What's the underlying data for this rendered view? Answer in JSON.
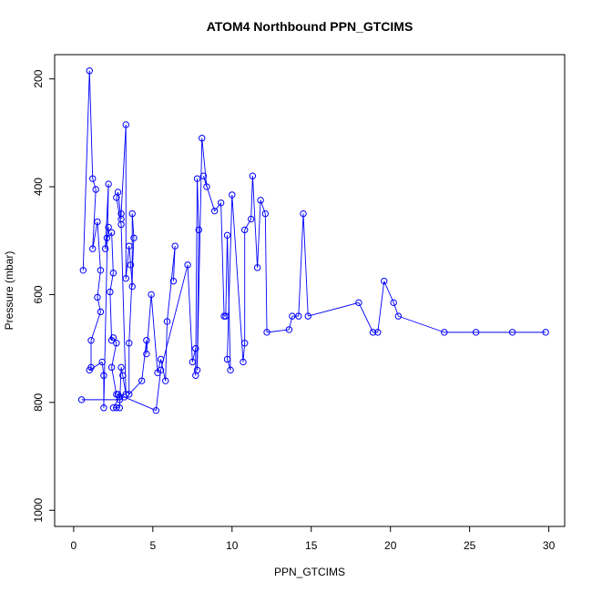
{
  "chart_data": {
    "type": "line",
    "title": "ATOM4 Northbound PPN_GTCIMS",
    "xlabel": "PPN_GTCIMS",
    "ylabel": "Pressure (mbar)",
    "xlim": [
      -1.2,
      31.0
    ],
    "ylim": [
      1030,
      155
    ],
    "y_reversed": true,
    "x_ticks": [
      0,
      5,
      10,
      15,
      20,
      25,
      30
    ],
    "y_ticks": [
      200,
      400,
      600,
      800,
      1000
    ],
    "series_color": "#0000ff",
    "grid": false,
    "legend": "none",
    "series": [
      {
        "values": [
          [
            0.6,
            555
          ],
          [
            1.0,
            185
          ],
          [
            1.2,
            385
          ],
          [
            1.4,
            405
          ],
          [
            1.2,
            515
          ],
          [
            1.5,
            465
          ],
          [
            1.7,
            555
          ],
          [
            1.5,
            605
          ],
          [
            1.7,
            632
          ],
          [
            1.1,
            685
          ],
          [
            1.1,
            735
          ],
          [
            1.0,
            740
          ],
          [
            1.8,
            725
          ],
          [
            1.9,
            750
          ],
          [
            1.9,
            810
          ],
          [
            2.2,
            395
          ],
          [
            2.0,
            515
          ],
          [
            2.2,
            475
          ],
          [
            2.1,
            495
          ],
          [
            2.4,
            485
          ],
          [
            2.5,
            560
          ],
          [
            2.3,
            595
          ],
          [
            2.4,
            685
          ],
          [
            2.5,
            680
          ],
          [
            2.7,
            690
          ],
          [
            2.4,
            735
          ],
          [
            2.7,
            785
          ],
          [
            2.8,
            785
          ],
          [
            2.9,
            790
          ],
          [
            2.5,
            810
          ],
          [
            2.7,
            810
          ],
          [
            2.9,
            810
          ],
          [
            3.0,
            735
          ],
          [
            3.1,
            750
          ],
          [
            3.3,
            785
          ],
          [
            3.0,
            470
          ],
          [
            2.7,
            420
          ],
          [
            2.8,
            410
          ],
          [
            3.0,
            460
          ],
          [
            3.0,
            450
          ],
          [
            3.3,
            285
          ],
          [
            3.3,
            570
          ],
          [
            3.5,
            510
          ],
          [
            3.6,
            545
          ],
          [
            3.7,
            585
          ],
          [
            3.7,
            450
          ],
          [
            3.8,
            495
          ],
          [
            3.5,
            690
          ],
          [
            3.5,
            785
          ],
          [
            4.3,
            760
          ],
          [
            4.6,
            685
          ],
          [
            4.6,
            710
          ],
          [
            4.9,
            600
          ],
          [
            5.3,
            745
          ],
          [
            5.5,
            720
          ],
          [
            5.8,
            760
          ],
          [
            5.9,
            650
          ],
          [
            6.4,
            510
          ],
          [
            6.3,
            575
          ]
        ]
      },
      {
        "values": [
          [
            0.5,
            795
          ],
          [
            2.9,
            795
          ],
          [
            3.2,
            790
          ],
          [
            5.2,
            815
          ],
          [
            5.5,
            740
          ],
          [
            7.2,
            545
          ],
          [
            7.5,
            725
          ],
          [
            7.7,
            700
          ],
          [
            7.7,
            750
          ],
          [
            7.8,
            385
          ],
          [
            7.9,
            480
          ],
          [
            7.8,
            740
          ],
          [
            8.1,
            310
          ],
          [
            8.4,
            400
          ],
          [
            8.2,
            380
          ],
          [
            8.9,
            445
          ],
          [
            9.3,
            430
          ],
          [
            9.5,
            640
          ],
          [
            9.6,
            640
          ],
          [
            9.7,
            490
          ],
          [
            9.9,
            740
          ],
          [
            9.7,
            720
          ],
          [
            10.0,
            415
          ],
          [
            10.7,
            725
          ],
          [
            10.8,
            690
          ],
          [
            10.8,
            480
          ],
          [
            11.2,
            460
          ],
          [
            11.3,
            380
          ],
          [
            11.6,
            550
          ],
          [
            11.8,
            425
          ],
          [
            12.1,
            450
          ],
          [
            12.2,
            670
          ],
          [
            13.6,
            665
          ],
          [
            13.8,
            640
          ],
          [
            14.2,
            640
          ],
          [
            14.5,
            450
          ],
          [
            14.8,
            640
          ],
          [
            18.0,
            615
          ],
          [
            18.9,
            670
          ],
          [
            19.2,
            670
          ],
          [
            19.6,
            575
          ],
          [
            20.2,
            615
          ],
          [
            20.5,
            640
          ],
          [
            23.4,
            670
          ],
          [
            25.4,
            670
          ],
          [
            27.7,
            670
          ],
          [
            29.8,
            670
          ]
        ]
      }
    ]
  }
}
